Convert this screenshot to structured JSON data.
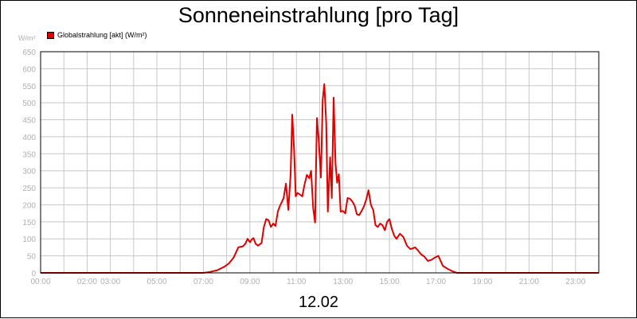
{
  "header": {
    "title": "Sonneneinstrahlung [pro Tag]"
  },
  "footer": {
    "date": "12.02"
  },
  "legend": {
    "label": "Globalstrahlung [akt] (W/m²)",
    "color": "#e00000"
  },
  "colors": {
    "series": "#e00000",
    "grid": "#c8c8c8",
    "axis": "#000000",
    "tick_text": "#b0b0b0"
  },
  "chart_data": {
    "type": "line",
    "title": "Sonneneinstrahlung [pro Tag]",
    "xlabel": "12.02",
    "ylabel": "W/m²",
    "ylim": [
      0,
      650
    ],
    "xlim": [
      0,
      24
    ],
    "grid": true,
    "legend_position": "top-left",
    "yticks": [
      0,
      50,
      100,
      150,
      200,
      250,
      300,
      350,
      400,
      450,
      500,
      550,
      600,
      650
    ],
    "xticks": [
      {
        "x": 0,
        "label": "00:00"
      },
      {
        "x": 2,
        "label": "02:00"
      },
      {
        "x": 3,
        "label": "03:00"
      },
      {
        "x": 5,
        "label": "05:00"
      },
      {
        "x": 7,
        "label": "07:00"
      },
      {
        "x": 9,
        "label": "09:00"
      },
      {
        "x": 11,
        "label": "11:00"
      },
      {
        "x": 13,
        "label": "13:00"
      },
      {
        "x": 15,
        "label": "15:00"
      },
      {
        "x": 17,
        "label": "17:00"
      },
      {
        "x": 19,
        "label": "19:00"
      },
      {
        "x": 21,
        "label": "21:00"
      },
      {
        "x": 23,
        "label": "23:00"
      }
    ],
    "series": [
      {
        "name": "Globalstrahlung [akt] (W/m²)",
        "color": "#e00000",
        "x": [
          0,
          7.0,
          7.3,
          7.6,
          7.9,
          8.1,
          8.3,
          8.5,
          8.7,
          8.8,
          8.9,
          9.0,
          9.1,
          9.15,
          9.25,
          9.35,
          9.5,
          9.6,
          9.7,
          9.8,
          9.9,
          10.0,
          10.1,
          10.2,
          10.3,
          10.35,
          10.45,
          10.55,
          10.65,
          10.75,
          10.82,
          10.9,
          10.97,
          11.05,
          11.15,
          11.25,
          11.35,
          11.45,
          11.55,
          11.63,
          11.72,
          11.8,
          11.88,
          11.95,
          12.05,
          12.13,
          12.2,
          12.28,
          12.35,
          12.45,
          12.52,
          12.6,
          12.68,
          12.75,
          12.82,
          12.9,
          13.0,
          13.1,
          13.2,
          13.3,
          13.4,
          13.5,
          13.6,
          13.7,
          13.8,
          13.9,
          14.0,
          14.1,
          14.2,
          14.3,
          14.4,
          14.5,
          14.6,
          14.7,
          14.8,
          14.9,
          15.0,
          15.1,
          15.2,
          15.3,
          15.45,
          15.6,
          15.75,
          15.9,
          16.0,
          16.1,
          16.2,
          16.35,
          16.5,
          16.65,
          16.8,
          16.95,
          17.1,
          17.3,
          17.5,
          17.7,
          17.9,
          24
        ],
        "values": [
          0,
          0,
          3,
          8,
          18,
          28,
          45,
          75,
          78,
          85,
          100,
          90,
          100,
          102,
          85,
          80,
          88,
          135,
          158,
          155,
          135,
          145,
          138,
          180,
          198,
          205,
          220,
          262,
          185,
          290,
          465,
          360,
          225,
          235,
          230,
          225,
          260,
          288,
          278,
          300,
          190,
          148,
          455,
          400,
          280,
          510,
          555,
          440,
          180,
          340,
          220,
          515,
          320,
          265,
          290,
          180,
          182,
          175,
          220,
          218,
          210,
          198,
          172,
          170,
          182,
          195,
          215,
          243,
          200,
          185,
          140,
          135,
          145,
          140,
          125,
          150,
          158,
          130,
          110,
          100,
          115,
          105,
          80,
          70,
          72,
          75,
          68,
          55,
          48,
          35,
          38,
          45,
          50,
          20,
          12,
          5,
          0,
          0
        ]
      }
    ]
  }
}
